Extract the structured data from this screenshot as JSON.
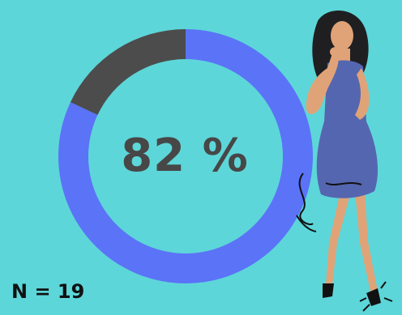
{
  "chart_data": {
    "type": "pie",
    "variant": "donut",
    "slices": [
      {
        "label": "",
        "value": 82,
        "color": "#5b73f7"
      },
      {
        "label": "",
        "value": 18,
        "color": "#4c4c4c"
      }
    ],
    "center_text": "82 %",
    "annotation": "N = 19"
  },
  "illustration": {
    "name": "thinking-woman-illustration",
    "colors": {
      "dress": "#5566b0",
      "skin": "#e0a377",
      "hair": "#1f1f22"
    }
  },
  "colors": {
    "background": "#5dd6d9"
  }
}
